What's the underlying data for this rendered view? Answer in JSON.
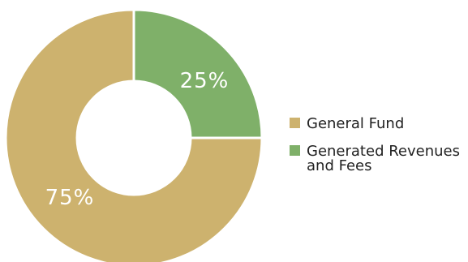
{
  "chart_data": {
    "type": "pie",
    "donut": true,
    "slices": [
      {
        "label": "Generated Revenues and Fees",
        "value": 25,
        "display": "25%",
        "color": "#7fb069"
      },
      {
        "label": "General Fund",
        "value": 75,
        "display": "75%",
        "color": "#cdb26e"
      }
    ],
    "legend": {
      "placement": "right",
      "entries": [
        {
          "text_lines": [
            "General Fund"
          ],
          "color": "#cdb26e"
        },
        {
          "text_lines": [
            "Generated Revenues",
            "and Fees"
          ],
          "color": "#7fb069"
        }
      ]
    }
  }
}
